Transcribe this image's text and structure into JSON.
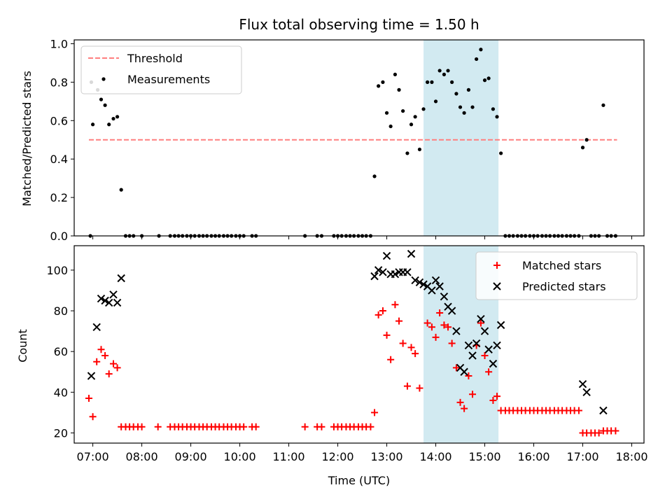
{
  "title": "Flux total observing time = 1.50 h",
  "xlabel": "Time (UTC)",
  "colors": {
    "threshold": "#ff7f7f",
    "measurements": "#000000",
    "matched": "#ff0000",
    "predicted": "#000000",
    "band": "#add8e6"
  },
  "chart_data": [
    {
      "type": "scatter",
      "ylabel": "Matched/Predicted stars",
      "ylim": [
        0,
        1.02
      ],
      "xlim": [
        6.62,
        18.25
      ],
      "yticks": [
        0.0,
        0.2,
        0.4,
        0.6,
        0.8,
        1.0
      ],
      "ytick_labels": [
        "0.0",
        "0.2",
        "0.4",
        "0.6",
        "0.8",
        "1.0"
      ],
      "legend": {
        "position": "top-left",
        "entries": [
          "Threshold",
          "Measurements"
        ]
      },
      "threshold": {
        "y": 0.5,
        "x_range": [
          6.92,
          17.7
        ]
      },
      "highlight_band": [
        13.75,
        15.28
      ],
      "series": [
        {
          "name": "Measurements",
          "points": [
            [
              6.95,
              0.0
            ],
            [
              6.97,
              0.8
            ],
            [
              7.0,
              0.58
            ],
            [
              7.1,
              0.76
            ],
            [
              7.17,
              0.71
            ],
            [
              7.25,
              0.68
            ],
            [
              7.33,
              0.58
            ],
            [
              7.42,
              0.61
            ],
            [
              7.5,
              0.62
            ],
            [
              7.58,
              0.24
            ],
            [
              7.67,
              0.0
            ],
            [
              7.75,
              0.0
            ],
            [
              7.83,
              0.0
            ],
            [
              8.0,
              0.0
            ],
            [
              8.35,
              0.0
            ],
            [
              8.58,
              0.0
            ],
            [
              8.67,
              0.0
            ],
            [
              8.75,
              0.0
            ],
            [
              8.83,
              0.0
            ],
            [
              8.92,
              0.0
            ],
            [
              9.0,
              0.0
            ],
            [
              9.08,
              0.0
            ],
            [
              9.17,
              0.0
            ],
            [
              9.25,
              0.0
            ],
            [
              9.33,
              0.0
            ],
            [
              9.42,
              0.0
            ],
            [
              9.5,
              0.0
            ],
            [
              9.58,
              0.0
            ],
            [
              9.67,
              0.0
            ],
            [
              9.75,
              0.0
            ],
            [
              9.83,
              0.0
            ],
            [
              9.92,
              0.0
            ],
            [
              10.0,
              0.0
            ],
            [
              10.08,
              0.0
            ],
            [
              10.25,
              0.0
            ],
            [
              10.33,
              0.0
            ],
            [
              11.33,
              0.0
            ],
            [
              11.58,
              0.0
            ],
            [
              11.67,
              0.0
            ],
            [
              11.92,
              0.0
            ],
            [
              12.0,
              0.0
            ],
            [
              12.08,
              0.0
            ],
            [
              12.17,
              0.0
            ],
            [
              12.25,
              0.0
            ],
            [
              12.33,
              0.0
            ],
            [
              12.42,
              0.0
            ],
            [
              12.5,
              0.0
            ],
            [
              12.58,
              0.0
            ],
            [
              12.67,
              0.0
            ],
            [
              12.75,
              0.31
            ],
            [
              12.83,
              0.78
            ],
            [
              12.92,
              0.8
            ],
            [
              13.0,
              0.64
            ],
            [
              13.08,
              0.57
            ],
            [
              13.17,
              0.84
            ],
            [
              13.25,
              0.76
            ],
            [
              13.33,
              0.65
            ],
            [
              13.42,
              0.43
            ],
            [
              13.5,
              0.58
            ],
            [
              13.58,
              0.62
            ],
            [
              13.67,
              0.45
            ],
            [
              13.75,
              0.66
            ],
            [
              13.83,
              0.8
            ],
            [
              13.92,
              0.8
            ],
            [
              14.0,
              0.7
            ],
            [
              14.08,
              0.86
            ],
            [
              14.17,
              0.84
            ],
            [
              14.25,
              0.86
            ],
            [
              14.33,
              0.8
            ],
            [
              14.42,
              0.74
            ],
            [
              14.5,
              0.67
            ],
            [
              14.58,
              0.64
            ],
            [
              14.67,
              0.76
            ],
            [
              14.75,
              0.67
            ],
            [
              14.83,
              0.92
            ],
            [
              14.92,
              0.97
            ],
            [
              15.0,
              0.81
            ],
            [
              15.08,
              0.82
            ],
            [
              15.17,
              0.66
            ],
            [
              15.25,
              0.62
            ],
            [
              15.33,
              0.43
            ],
            [
              15.42,
              0.0
            ],
            [
              15.5,
              0.0
            ],
            [
              15.58,
              0.0
            ],
            [
              15.67,
              0.0
            ],
            [
              15.75,
              0.0
            ],
            [
              15.83,
              0.0
            ],
            [
              15.92,
              0.0
            ],
            [
              16.0,
              0.0
            ],
            [
              16.08,
              0.0
            ],
            [
              16.17,
              0.0
            ],
            [
              16.25,
              0.0
            ],
            [
              16.33,
              0.0
            ],
            [
              16.42,
              0.0
            ],
            [
              16.5,
              0.0
            ],
            [
              16.58,
              0.0
            ],
            [
              16.67,
              0.0
            ],
            [
              16.75,
              0.0
            ],
            [
              16.83,
              0.0
            ],
            [
              16.92,
              0.0
            ],
            [
              17.0,
              0.46
            ],
            [
              17.08,
              0.5
            ],
            [
              17.17,
              0.0
            ],
            [
              17.25,
              0.0
            ],
            [
              17.33,
              0.0
            ],
            [
              17.42,
              0.68
            ],
            [
              17.5,
              0.0
            ],
            [
              17.58,
              0.0
            ],
            [
              17.67,
              0.0
            ]
          ]
        }
      ]
    },
    {
      "type": "scatter",
      "ylabel": "Count",
      "ylim": [
        15,
        112
      ],
      "xlim": [
        6.62,
        18.25
      ],
      "yticks": [
        20,
        40,
        60,
        80,
        100
      ],
      "ytick_labels": [
        "20",
        "40",
        "60",
        "80",
        "100"
      ],
      "xticks": [
        7,
        8,
        9,
        10,
        11,
        12,
        13,
        14,
        15,
        16,
        17,
        18
      ],
      "xtick_labels": [
        "07:00",
        "08:00",
        "09:00",
        "10:00",
        "11:00",
        "12:00",
        "13:00",
        "14:00",
        "15:00",
        "16:00",
        "17:00",
        "18:00"
      ],
      "legend": {
        "position": "top-right",
        "entries": [
          "Matched stars",
          "Predicted stars"
        ]
      },
      "highlight_band": [
        13.75,
        15.28
      ],
      "series": [
        {
          "name": "Matched stars",
          "points": [
            [
              6.92,
              37
            ],
            [
              7.0,
              28
            ],
            [
              7.08,
              55
            ],
            [
              7.17,
              61
            ],
            [
              7.25,
              58
            ],
            [
              7.33,
              49
            ],
            [
              7.42,
              54
            ],
            [
              7.5,
              52
            ],
            [
              7.58,
              23
            ],
            [
              7.67,
              23
            ],
            [
              7.75,
              23
            ],
            [
              7.83,
              23
            ],
            [
              7.92,
              23
            ],
            [
              8.0,
              23
            ],
            [
              8.33,
              23
            ],
            [
              8.58,
              23
            ],
            [
              8.67,
              23
            ],
            [
              8.75,
              23
            ],
            [
              8.83,
              23
            ],
            [
              8.92,
              23
            ],
            [
              9.0,
              23
            ],
            [
              9.08,
              23
            ],
            [
              9.17,
              23
            ],
            [
              9.25,
              23
            ],
            [
              9.33,
              23
            ],
            [
              9.42,
              23
            ],
            [
              9.5,
              23
            ],
            [
              9.58,
              23
            ],
            [
              9.67,
              23
            ],
            [
              9.75,
              23
            ],
            [
              9.83,
              23
            ],
            [
              9.92,
              23
            ],
            [
              10.0,
              23
            ],
            [
              10.08,
              23
            ],
            [
              10.25,
              23
            ],
            [
              10.33,
              23
            ],
            [
              11.33,
              23
            ],
            [
              11.58,
              23
            ],
            [
              11.67,
              23
            ],
            [
              11.92,
              23
            ],
            [
              12.0,
              23
            ],
            [
              12.08,
              23
            ],
            [
              12.17,
              23
            ],
            [
              12.25,
              23
            ],
            [
              12.33,
              23
            ],
            [
              12.42,
              23
            ],
            [
              12.5,
              23
            ],
            [
              12.58,
              23
            ],
            [
              12.67,
              23
            ],
            [
              12.75,
              30
            ],
            [
              12.83,
              78
            ],
            [
              12.92,
              80
            ],
            [
              13.0,
              68
            ],
            [
              13.08,
              56
            ],
            [
              13.17,
              83
            ],
            [
              13.25,
              75
            ],
            [
              13.33,
              64
            ],
            [
              13.42,
              43
            ],
            [
              13.5,
              62
            ],
            [
              13.58,
              59
            ],
            [
              13.67,
              42
            ],
            [
              13.83,
              74
            ],
            [
              13.92,
              72
            ],
            [
              14.0,
              67
            ],
            [
              14.08,
              79
            ],
            [
              14.17,
              73
            ],
            [
              14.25,
              72
            ],
            [
              14.33,
              64
            ],
            [
              14.42,
              52
            ],
            [
              14.5,
              35
            ],
            [
              14.58,
              32
            ],
            [
              14.67,
              48
            ],
            [
              14.75,
              39
            ],
            [
              14.83,
              63
            ],
            [
              14.92,
              74
            ],
            [
              15.0,
              58
            ],
            [
              15.08,
              50
            ],
            [
              15.17,
              36
            ],
            [
              15.25,
              38
            ],
            [
              15.33,
              31
            ],
            [
              15.42,
              31
            ],
            [
              15.5,
              31
            ],
            [
              15.58,
              31
            ],
            [
              15.67,
              31
            ],
            [
              15.75,
              31
            ],
            [
              15.83,
              31
            ],
            [
              15.92,
              31
            ],
            [
              16.0,
              31
            ],
            [
              16.08,
              31
            ],
            [
              16.17,
              31
            ],
            [
              16.25,
              31
            ],
            [
              16.33,
              31
            ],
            [
              16.42,
              31
            ],
            [
              16.5,
              31
            ],
            [
              16.58,
              31
            ],
            [
              16.67,
              31
            ],
            [
              16.75,
              31
            ],
            [
              16.83,
              31
            ],
            [
              16.92,
              31
            ],
            [
              17.0,
              20
            ],
            [
              17.08,
              20
            ],
            [
              17.17,
              20
            ],
            [
              17.25,
              20
            ],
            [
              17.33,
              20
            ],
            [
              17.42,
              21
            ],
            [
              17.5,
              21
            ],
            [
              17.58,
              21
            ],
            [
              17.67,
              21
            ]
          ]
        },
        {
          "name": "Predicted stars",
          "points": [
            [
              6.97,
              48
            ],
            [
              7.08,
              72
            ],
            [
              7.17,
              86
            ],
            [
              7.25,
              85
            ],
            [
              7.33,
              84
            ],
            [
              7.42,
              88
            ],
            [
              7.5,
              84
            ],
            [
              7.58,
              96
            ],
            [
              12.75,
              97
            ],
            [
              12.83,
              100
            ],
            [
              12.92,
              99
            ],
            [
              13.0,
              107
            ],
            [
              13.08,
              98
            ],
            [
              13.17,
              98
            ],
            [
              13.25,
              99
            ],
            [
              13.33,
              99
            ],
            [
              13.42,
              99
            ],
            [
              13.5,
              108
            ],
            [
              13.58,
              95
            ],
            [
              13.67,
              94
            ],
            [
              13.75,
              93
            ],
            [
              13.83,
              92
            ],
            [
              13.92,
              90
            ],
            [
              14.0,
              95
            ],
            [
              14.08,
              92
            ],
            [
              14.17,
              87
            ],
            [
              14.25,
              82
            ],
            [
              14.33,
              80
            ],
            [
              14.42,
              70
            ],
            [
              14.5,
              52
            ],
            [
              14.58,
              50
            ],
            [
              14.67,
              63
            ],
            [
              14.75,
              58
            ],
            [
              14.83,
              64
            ],
            [
              14.92,
              76
            ],
            [
              15.0,
              70
            ],
            [
              15.08,
              61
            ],
            [
              15.17,
              54
            ],
            [
              15.25,
              63
            ],
            [
              15.33,
              73
            ],
            [
              17.0,
              44
            ],
            [
              17.08,
              40
            ],
            [
              17.42,
              31
            ]
          ]
        }
      ]
    }
  ]
}
